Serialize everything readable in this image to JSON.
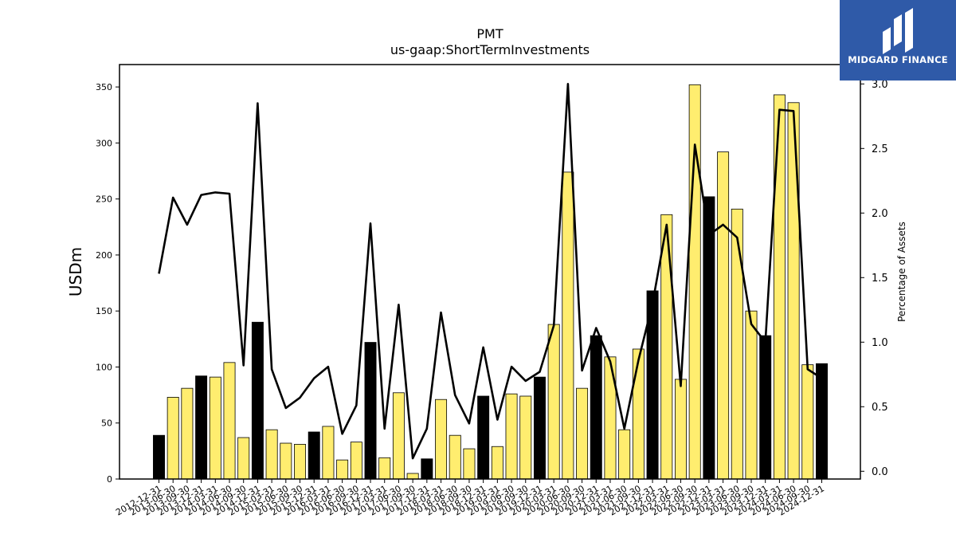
{
  "chart_data": {
    "type": "bar",
    "title": "PMT",
    "subtitle": "us-gaap:ShortTermInvestments",
    "ylabel": "USDm",
    "y2label": "Percentage of Assets",
    "ylim": [
      0,
      370
    ],
    "y2lim": [
      -0.06,
      3.15
    ],
    "yticks": [
      0,
      50,
      100,
      150,
      200,
      250,
      300,
      350
    ],
    "y2ticks": [
      "0.0",
      "0.5",
      "1.0",
      "1.5",
      "2.0",
      "2.5",
      "3.0"
    ],
    "categories": [
      "2012-12-31",
      "2013-06-30",
      "2013-09-30",
      "2013-12-31",
      "2014-03-31",
      "2014-06-30",
      "2014-09-30",
      "2014-12-31",
      "2015-03-31",
      "2015-06-30",
      "2015-09-30",
      "2015-12-31",
      "2016-03-31",
      "2016-06-30",
      "2016-09-30",
      "2016-12-31",
      "2017-03-31",
      "2017-06-30",
      "2017-09-30",
      "2017-12-31",
      "2018-03-31",
      "2018-06-30",
      "2018-09-30",
      "2018-12-31",
      "2019-03-31",
      "2019-06-30",
      "2019-09-30",
      "2019-12-31",
      "2020-03-31",
      "2020-06-30",
      "2020-09-30",
      "2020-12-31",
      "2021-03-31",
      "2021-06-30",
      "2021-09-30",
      "2021-12-31",
      "2022-03-31",
      "2022-06-30",
      "2022-09-30",
      "2022-12-31",
      "2023-03-31",
      "2023-06-30",
      "2023-09-30",
      "2023-12-31",
      "2024-03-31",
      "2024-06-30",
      "2024-09-30",
      "2024-12-31"
    ],
    "series": [
      {
        "type": "bar",
        "axis": "left",
        "values": [
          39,
          73,
          81,
          92,
          91,
          104,
          37,
          140,
          44,
          32,
          31,
          42,
          47,
          17,
          33,
          122,
          19,
          77,
          5,
          18,
          71,
          39,
          27,
          74,
          29,
          76,
          74,
          91,
          138,
          274,
          81,
          128,
          109,
          44,
          116,
          168,
          236,
          89,
          352,
          252,
          292,
          241,
          150,
          128,
          343,
          336,
          102,
          103
        ],
        "year_end": [
          true,
          false,
          false,
          true,
          false,
          false,
          false,
          true,
          false,
          false,
          false,
          true,
          false,
          false,
          false,
          true,
          false,
          false,
          false,
          true,
          false,
          false,
          false,
          true,
          false,
          false,
          false,
          true,
          false,
          false,
          false,
          true,
          false,
          false,
          false,
          true,
          false,
          false,
          false,
          true,
          false,
          false,
          false,
          true,
          false,
          false,
          false,
          true
        ]
      },
      {
        "type": "line",
        "axis": "right",
        "values": [
          1.53,
          2.12,
          1.91,
          2.14,
          2.16,
          2.15,
          0.82,
          2.85,
          0.79,
          0.49,
          0.57,
          0.72,
          0.81,
          0.29,
          0.51,
          1.92,
          0.33,
          1.29,
          0.1,
          0.33,
          1.23,
          0.59,
          0.37,
          0.96,
          0.4,
          0.81,
          0.7,
          0.77,
          1.13,
          3.0,
          0.78,
          1.11,
          0.85,
          0.33,
          0.86,
          1.3,
          1.91,
          0.66,
          2.53,
          1.83,
          1.91,
          1.81,
          1.14,
          1.0,
          2.8,
          2.79,
          0.79,
          0.72
        ]
      }
    ],
    "colors": {
      "bar_fill": "#ffed6f",
      "bar_year_end": "#000000",
      "bar_edge": "#000000",
      "line": "#000000"
    },
    "grid": false,
    "legend": "none"
  },
  "logo": {
    "text": "MIDGARD FINANCE",
    "icon": "midgard-logo-icon",
    "background": "#2f5aa8"
  }
}
